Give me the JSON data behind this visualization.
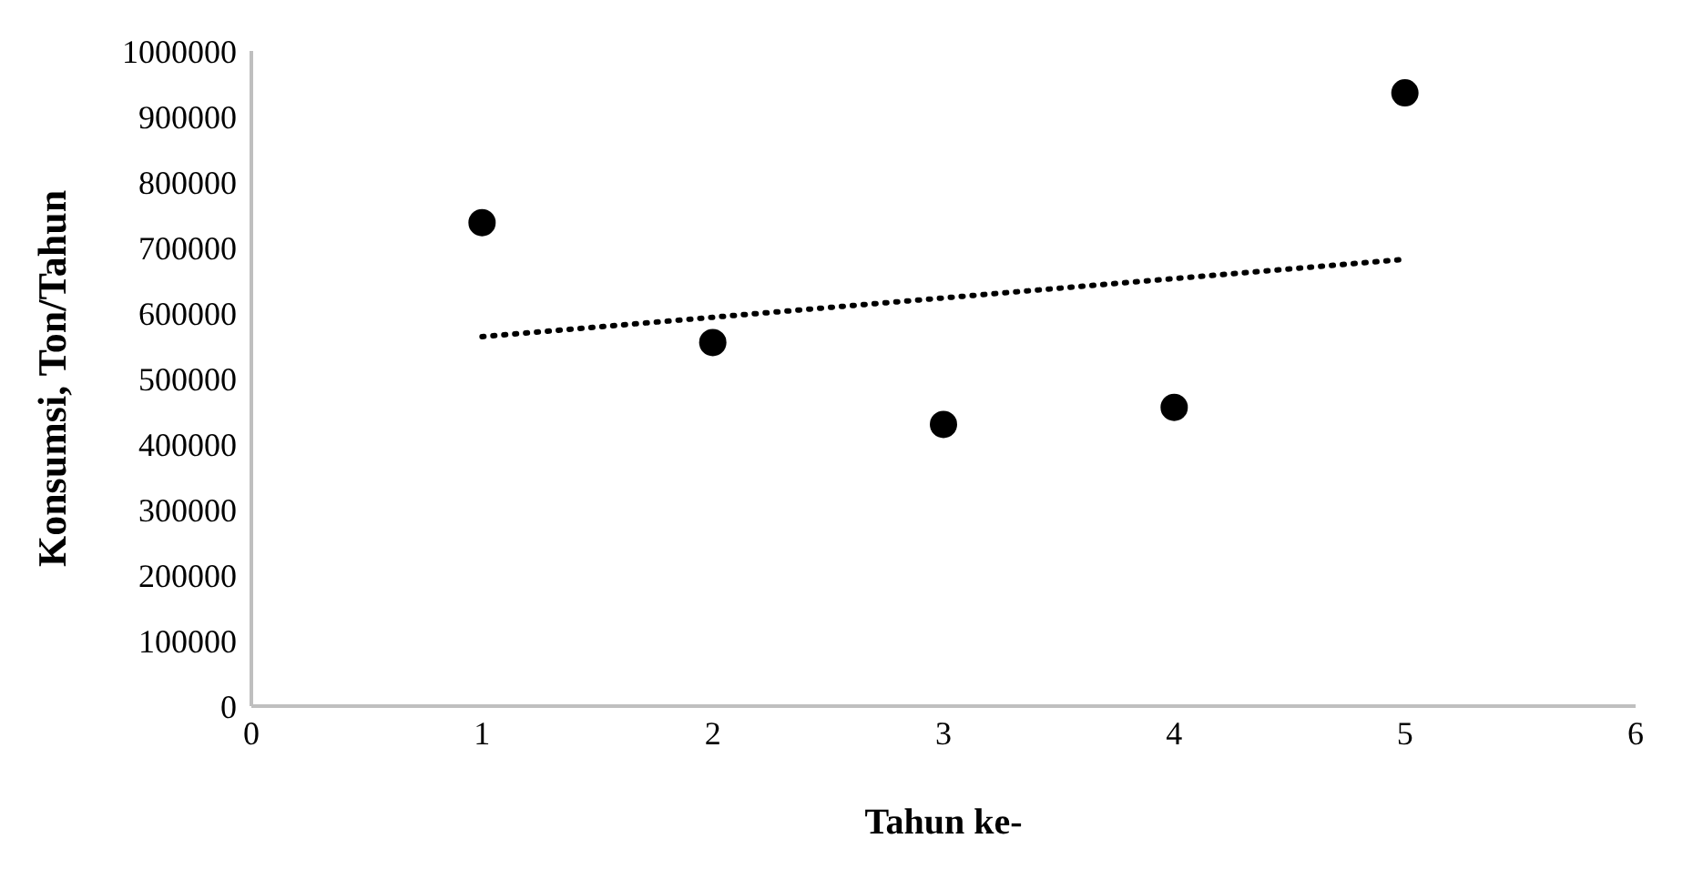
{
  "chart_data": {
    "type": "scatter",
    "xlabel": "Tahun ke-",
    "ylabel": "Konsumsi, Ton/Tahun",
    "x": [
      1,
      2,
      3,
      4,
      5
    ],
    "series": [
      {
        "color": "#000000",
        "values": [
          738000,
          555000,
          430000,
          456000,
          936000
        ],
        "marker": "circle"
      },
      {
        "type": "line",
        "color": "#000000",
        "x": [
          1,
          5
        ],
        "values": [
          564000,
          682000
        ],
        "line_style": "dotted",
        "marker": "none"
      }
    ],
    "xlim": [
      0,
      6
    ],
    "xticks": [
      0,
      1,
      2,
      3,
      4,
      5,
      6
    ],
    "ylim": [
      0,
      1000000
    ],
    "yticks": [
      0,
      100000,
      200000,
      300000,
      400000,
      500000,
      600000,
      700000,
      800000,
      900000,
      1000000
    ],
    "grid": false,
    "legend": false
  }
}
